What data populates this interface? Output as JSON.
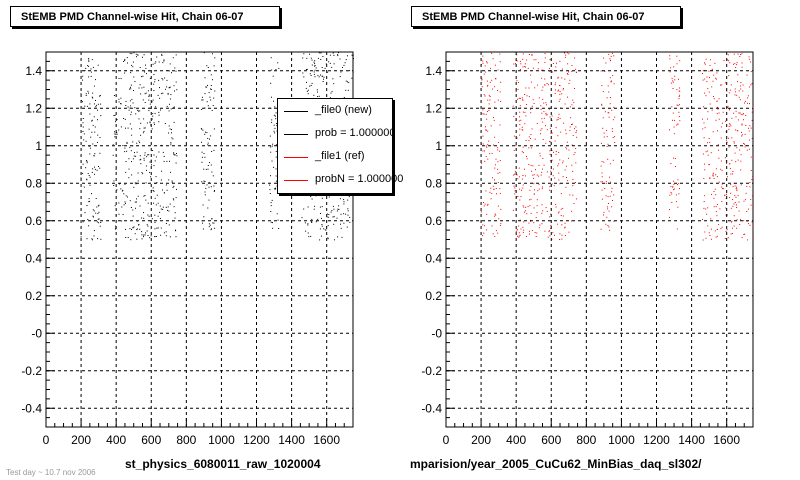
{
  "bottom_note": "Test day ~ 10.7 nov 2006",
  "chart_data": [
    {
      "type": "scatter",
      "title": "StEMB PMD Channel-wise Hit, Chain 06-07",
      "xlabel": "st_physics_6080011_raw_1020004",
      "ylabel": "",
      "xlim": [
        0,
        1750
      ],
      "ylim": [
        -0.5,
        1.5
      ],
      "xticks": [
        0,
        200,
        400,
        600,
        800,
        1000,
        1200,
        1400,
        1600
      ],
      "yticks": [
        -0.4,
        -0.2,
        0,
        0.2,
        0.4,
        0.6,
        0.8,
        1,
        1.2,
        1.4
      ],
      "ytick_labels": [
        "-0.4",
        "-0.2",
        "-0",
        "0.2",
        "0.4",
        "0.6",
        "0.8",
        "1",
        "1.2",
        "1.4"
      ],
      "grid": true,
      "series_color": "#000000",
      "bands": [
        [
          195,
          310,
          0.5,
          1.5
        ],
        [
          380,
          745,
          0.5,
          1.5
        ],
        [
          880,
          960,
          0.55,
          1.5
        ],
        [
          1270,
          1330,
          0.55,
          1.5
        ],
        [
          1455,
          1750,
          0.5,
          1.5
        ]
      ],
      "legend": {
        "placement": "top-right",
        "entries": [
          {
            "label": "_file0 (new)",
            "color": "#000000"
          },
          {
            "label": "prob = 1.000000",
            "color": "#000000"
          },
          {
            "label": "_file1 (ref)",
            "color": "#ff0000"
          },
          {
            "label": "probN = 1.000000",
            "color": "#ff0000"
          }
        ]
      }
    },
    {
      "type": "scatter",
      "title": "StEMB PMD Channel-wise Hit, Chain 06-07",
      "xlabel": "mparision/year_2005_CuCu62_MinBias_daq_sl302/",
      "ylabel": "",
      "xlim": [
        0,
        1750
      ],
      "ylim": [
        -0.5,
        1.5
      ],
      "xticks": [
        0,
        200,
        400,
        600,
        800,
        1000,
        1200,
        1400,
        1600
      ],
      "yticks": [
        -0.4,
        -0.2,
        0,
        0.2,
        0.4,
        0.6,
        0.8,
        1,
        1.2,
        1.4
      ],
      "ytick_labels": [
        "-0.4",
        "-0.2",
        "-0",
        "0.2",
        "0.4",
        "0.6",
        "0.8",
        "1",
        "1.2",
        "1.4"
      ],
      "grid": true,
      "series_color": "#ff0000",
      "bands": [
        [
          195,
          310,
          0.5,
          1.5
        ],
        [
          380,
          745,
          0.5,
          1.5
        ],
        [
          880,
          960,
          0.55,
          1.5
        ],
        [
          1270,
          1330,
          0.55,
          1.5
        ],
        [
          1455,
          1750,
          0.5,
          1.5
        ]
      ]
    }
  ]
}
